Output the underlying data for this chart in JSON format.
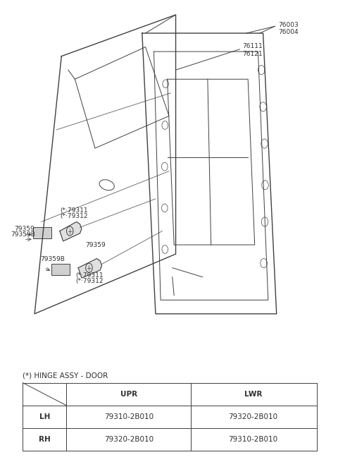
{
  "background_color": "#ffffff",
  "fig_width": 4.8,
  "fig_height": 6.55,
  "dpi": 100,
  "table_note": "(*) HINGE ASSY - DOOR",
  "table_headers": [
    "",
    "UPR",
    "LWR"
  ],
  "table_rows": [
    [
      "LH",
      "79310-2B010",
      "79320-2B010"
    ],
    [
      "RH",
      "79320-2B010",
      "79310-2B010"
    ]
  ],
  "line_color": "#404040",
  "text_color": "#303030",
  "label_fontsize": 6.5,
  "note_fontsize": 7.5,
  "table_fontsize": 7.5
}
